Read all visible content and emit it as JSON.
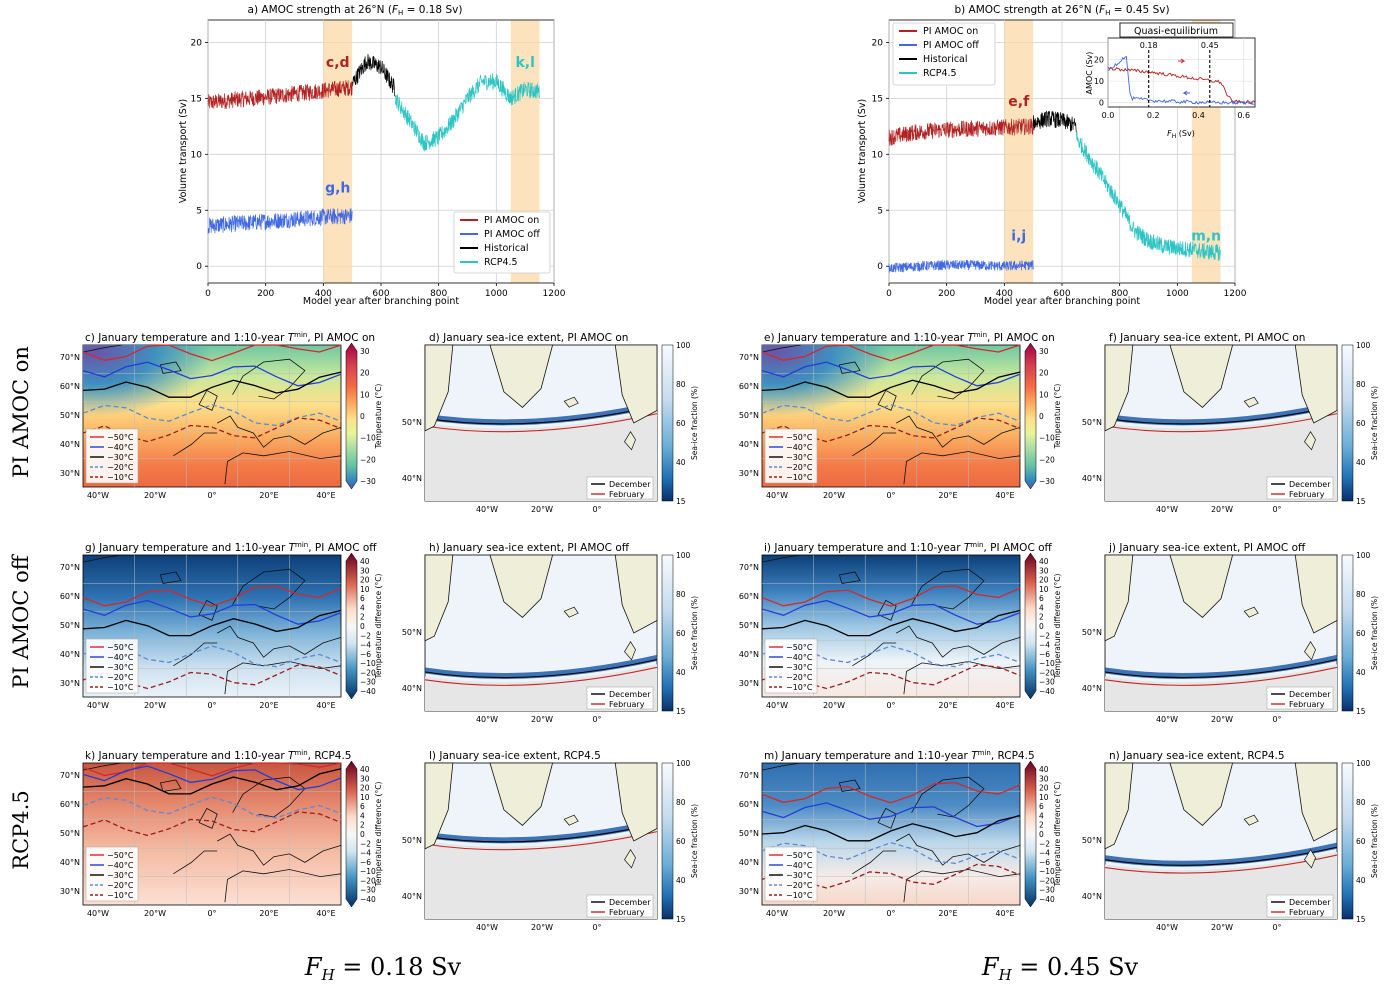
{
  "chart_data": [
    {
      "type": "line",
      "title": "a) AMOC strength at 26°N (F_H = 0.18 Sv)",
      "xlabel": "Model year after branching point",
      "ylabel": "Volume transport (Sv)",
      "xlim": [
        0,
        1200
      ],
      "ylim": [
        -1.5,
        22
      ],
      "xticks": [
        "0",
        "200",
        "400",
        "600",
        "800",
        "1000",
        "1200"
      ],
      "yticks": [
        "0",
        "5",
        "10",
        "15",
        "20"
      ],
      "grid": true,
      "legend": "bottom-right",
      "shaded_periods": [
        [
          400,
          500
        ],
        [
          1050,
          1150
        ]
      ],
      "annotations": [
        {
          "text": "c,d",
          "x": 450,
          "y": 17.8,
          "color": "#b22222"
        },
        {
          "text": "g,h",
          "x": 450,
          "y": 6.6,
          "color": "#4169e1"
        },
        {
          "text": "k,l",
          "x": 1100,
          "y": 17.8,
          "color": "#2ec4c4"
        }
      ],
      "series": [
        {
          "name": "PI AMOC on",
          "color": "#b22222",
          "x": [
            0,
            100,
            200,
            300,
            400,
            500
          ],
          "y": [
            14.6,
            14.9,
            15.1,
            15.4,
            15.7,
            16.0
          ]
        },
        {
          "name": "PI AMOC off",
          "color": "#4169e1",
          "x": [
            0,
            100,
            200,
            300,
            400,
            500
          ],
          "y": [
            3.6,
            3.8,
            4.0,
            4.2,
            4.4,
            4.5
          ]
        },
        {
          "name": "Historical",
          "color": "#000000",
          "x": [
            500,
            550,
            600,
            650
          ],
          "y": [
            16.3,
            18.3,
            17.8,
            15.8
          ]
        },
        {
          "name": "RCP4.5",
          "color": "#2ec4c4",
          "x": [
            650,
            700,
            750,
            800,
            850,
            900,
            950,
            1000,
            1050,
            1100,
            1150
          ],
          "y": [
            15.0,
            13.0,
            11.0,
            11.5,
            13.0,
            15.0,
            16.5,
            16.5,
            15.0,
            15.8,
            15.6
          ]
        }
      ]
    },
    {
      "type": "line",
      "title": "b) AMOC strength at 26°N (F_H = 0.45 Sv)",
      "xlabel": "Model year after branching point",
      "ylabel": "Volume transport (Sv)",
      "xlim": [
        0,
        1200
      ],
      "ylim": [
        -1.5,
        22
      ],
      "xticks": [
        "0",
        "200",
        "400",
        "600",
        "800",
        "1000",
        "1200"
      ],
      "yticks": [
        "0",
        "5",
        "10",
        "15",
        "20"
      ],
      "grid": true,
      "legend": "top-left",
      "shaded_periods": [
        [
          400,
          500
        ],
        [
          1050,
          1150
        ]
      ],
      "annotations": [
        {
          "text": "e,f",
          "x": 450,
          "y": 14.3,
          "color": "#b22222"
        },
        {
          "text": "i,j",
          "x": 450,
          "y": 2.3,
          "color": "#4169e1"
        },
        {
          "text": "m,n",
          "x": 1100,
          "y": 2.3,
          "color": "#2ec4c4"
        }
      ],
      "series": [
        {
          "name": "PI AMOC on",
          "color": "#b22222",
          "x": [
            0,
            100,
            200,
            300,
            400,
            500
          ],
          "y": [
            11.5,
            12.0,
            12.2,
            12.3,
            12.4,
            12.5
          ]
        },
        {
          "name": "PI AMOC off",
          "color": "#4169e1",
          "x": [
            0,
            100,
            200,
            300,
            400,
            500
          ],
          "y": [
            -0.2,
            0.0,
            0.1,
            0.1,
            0.0,
            0.1
          ]
        },
        {
          "name": "Historical",
          "color": "#000000",
          "x": [
            500,
            550,
            600,
            650
          ],
          "y": [
            12.8,
            13.2,
            13.0,
            12.5
          ]
        },
        {
          "name": "RCP4.5",
          "color": "#2ec4c4",
          "x": [
            650,
            700,
            750,
            800,
            850,
            900,
            950,
            1000,
            1050,
            1100,
            1150
          ],
          "y": [
            11.5,
            9.5,
            7.5,
            5.5,
            3.2,
            2.3,
            1.8,
            1.6,
            1.5,
            1.3,
            1.2
          ]
        }
      ],
      "inset": {
        "title": "Quasi-equilibrium",
        "xlabel": "F_H (Sv)",
        "ylabel": "AMOC (Sv)",
        "xlim": [
          0,
          0.65
        ],
        "ylim": [
          -2,
          30
        ],
        "xticks": [
          "0.0",
          "0.2",
          "0.4",
          "0.6"
        ],
        "yticks": [
          "0",
          "10",
          "20"
        ],
        "markers": [
          {
            "x": 0.18,
            "label": "0.18"
          },
          {
            "x": 0.45,
            "label": "0.45"
          }
        ],
        "series": [
          {
            "name": "PI AMOC on",
            "color": "#b22222",
            "x": [
              0.0,
              0.1,
              0.2,
              0.3,
              0.4,
              0.5,
              0.53,
              0.55,
              0.65
            ],
            "y": [
              16.0,
              15.0,
              14.0,
              12.5,
              11.0,
              9.5,
              3.0,
              0.5,
              0.0
            ]
          },
          {
            "name": "PI AMOC off",
            "color": "#4169e1",
            "x": [
              0.0,
              0.05,
              0.08,
              0.1,
              0.2,
              0.3,
              0.4,
              0.5,
              0.6,
              0.65
            ],
            "y": [
              15.0,
              19.0,
              22.0,
              2.0,
              1.0,
              0.5,
              0.2,
              0.0,
              0.0,
              0.0
            ]
          }
        ]
      }
    },
    {
      "type": "heatmap",
      "panels": [
        {
          "id": "c",
          "title": "c) January temperature and 1:10-year T^min, PI AMOC on",
          "kind": "temp"
        },
        {
          "id": "d",
          "title": "d) January sea-ice extent, PI AMOC on",
          "kind": "ice"
        },
        {
          "id": "e",
          "title": "e) January temperature and 1:10-year T^min, PI AMOC on",
          "kind": "temp"
        },
        {
          "id": "f",
          "title": "f) January sea-ice extent, PI AMOC on",
          "kind": "ice"
        },
        {
          "id": "g",
          "title": "g) January temperature and 1:10-year T^min, PI AMOC off",
          "kind": "diff"
        },
        {
          "id": "h",
          "title": "h) January sea-ice extent, PI AMOC off",
          "kind": "ice"
        },
        {
          "id": "i",
          "title": "i) January temperature and 1:10-year T^min, PI AMOC off",
          "kind": "diff"
        },
        {
          "id": "j",
          "title": "j) January sea-ice extent, PI AMOC off",
          "kind": "ice"
        },
        {
          "id": "k",
          "title": "k) January temperature and 1:10-year T^min, RCP4.5",
          "kind": "diff"
        },
        {
          "id": "l",
          "title": "l) January sea-ice extent, RCP4.5",
          "kind": "ice"
        },
        {
          "id": "m",
          "title": "m) January temperature and 1:10-year T^min, RCP4.5",
          "kind": "diff"
        },
        {
          "id": "n",
          "title": "n) January sea-ice extent, RCP4.5",
          "kind": "ice"
        }
      ],
      "temperature_colorbar": {
        "label": "Temperature (°C)",
        "ticks": [
          "30",
          "20",
          "10",
          "0",
          "−10",
          "−20",
          "−30"
        ],
        "range": [
          -30,
          30
        ]
      },
      "difference_colorbar": {
        "label": "Temperature difference (°C)",
        "ticks": [
          "40",
          "30",
          "20",
          "10",
          "6",
          "4",
          "2",
          "0",
          "−2",
          "−4",
          "−6",
          "−10",
          "−20",
          "−30",
          "−40"
        ],
        "range": [
          -40,
          40
        ]
      },
      "ice_colorbar": {
        "label": "Sea-ice fraction (%)",
        "ticks": [
          "100",
          "80",
          "60",
          "40",
          "15"
        ],
        "range": [
          15,
          100
        ]
      },
      "lat_ticks": [
        "70°N",
        "60°N",
        "50°N",
        "40°N",
        "30°N"
      ],
      "lon_ticks": [
        "40°W",
        "20°W",
        "0°",
        "20°E",
        "40°E"
      ],
      "polar_lat_ticks": [
        "50°N",
        "40°N"
      ],
      "polar_lon_ticks": [
        "40°W",
        "20°W",
        "0°"
      ],
      "contour_legend": [
        {
          "label": "−50°C",
          "color": "#d62728",
          "dash": false
        },
        {
          "label": "−40°C",
          "color": "#1f3fd6",
          "dash": false
        },
        {
          "label": "−30°C",
          "color": "#000000",
          "dash": false
        },
        {
          "label": "−20°C",
          "color": "#5b8bd6",
          "dash": true
        },
        {
          "label": "−10°C",
          "color": "#9e1c1c",
          "dash": true
        }
      ],
      "ice_legend": [
        {
          "label": "December",
          "color": "#000000"
        },
        {
          "label": "February",
          "color": "#c62828"
        }
      ]
    }
  ],
  "row_labels": [
    "PI AMOC on",
    "PI AMOC off",
    "RCP4.5"
  ],
  "footer_labels": [
    "F_H = 0.18 Sv",
    "F_H = 0.45 Sv"
  ]
}
